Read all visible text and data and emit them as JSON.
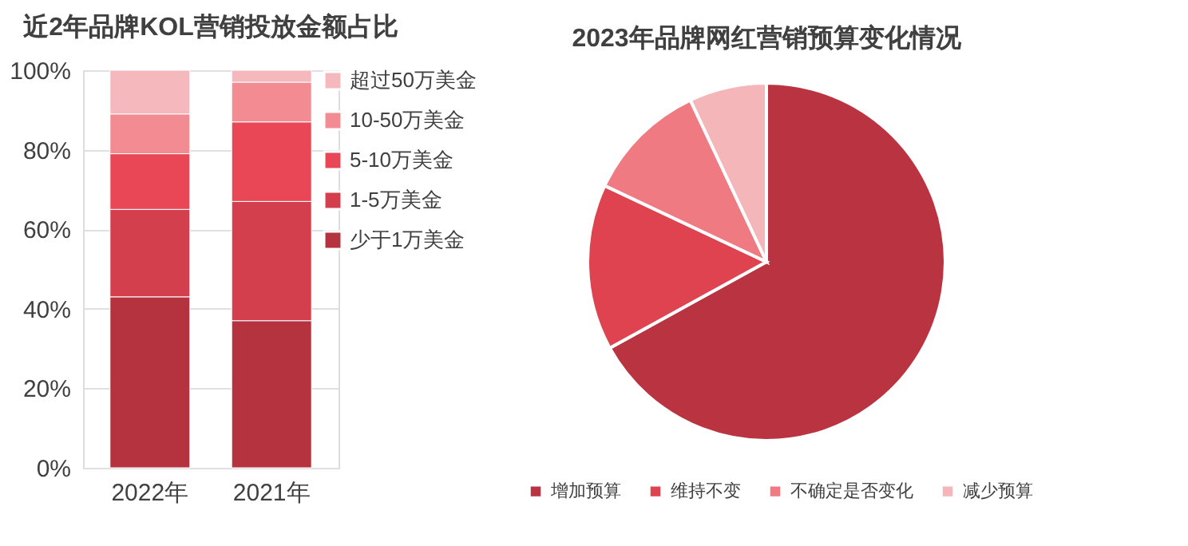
{
  "chart_data": [
    {
      "type": "bar",
      "title": "近2年品牌KOL营销投放金额占比",
      "categories": [
        "2022年",
        "2021年"
      ],
      "stacked": true,
      "ylim": [
        0,
        100
      ],
      "yticks": [
        {
          "value": 0,
          "label": "0%"
        },
        {
          "value": 20,
          "label": "20%"
        },
        {
          "value": 40,
          "label": "40%"
        },
        {
          "value": 60,
          "label": "60%"
        },
        {
          "value": 80,
          "label": "80%"
        },
        {
          "value": 100,
          "label": "100%"
        }
      ],
      "grid": "y",
      "legend": "right",
      "series": [
        {
          "name": "少于1万美金",
          "color": "#b5333f",
          "values": [
            43,
            37
          ]
        },
        {
          "name": "1-5万美金",
          "color": "#d43f4d",
          "values": [
            22,
            30
          ]
        },
        {
          "name": "5-10万美金",
          "color": "#ea4756",
          "values": [
            14,
            20
          ]
        },
        {
          "name": "10-50万美金",
          "color": "#f28b92",
          "values": [
            10,
            10
          ]
        },
        {
          "name": "超过50万美金",
          "color": "#f5b9bd",
          "values": [
            11,
            3
          ]
        }
      ]
    },
    {
      "type": "pie",
      "title": "2023年品牌网红营销预算变化情况",
      "categories": [
        "增加预算",
        "维持不变",
        "不确定是否变化",
        "减少预算"
      ],
      "values": [
        67,
        15,
        11,
        7
      ],
      "colors": [
        "#b93440",
        "#e04350",
        "#f07a82",
        "#f5b6ba"
      ],
      "legend": "bottom"
    }
  ]
}
